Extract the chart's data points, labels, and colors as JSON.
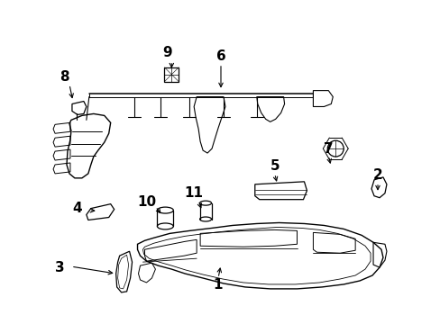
{
  "bg_color": "#ffffff",
  "line_color": "#000000",
  "label_color": "#000000",
  "figsize": [
    4.89,
    3.6
  ],
  "dpi": 100,
  "label_info": {
    "1": {
      "lpos": [
        242,
        318
      ],
      "astart": [
        242,
        310
      ],
      "aend": [
        245,
        295
      ]
    },
    "2": {
      "lpos": [
        420,
        195
      ],
      "astart": [
        420,
        203
      ],
      "aend": [
        420,
        215
      ]
    },
    "3": {
      "lpos": [
        65,
        298
      ],
      "astart": [
        78,
        297
      ],
      "aend": [
        128,
        305
      ]
    },
    "4": {
      "lpos": [
        85,
        232
      ],
      "astart": [
        98,
        234
      ],
      "aend": [
        108,
        235
      ]
    },
    "5": {
      "lpos": [
        305,
        185
      ],
      "astart": [
        305,
        193
      ],
      "aend": [
        308,
        205
      ]
    },
    "6": {
      "lpos": [
        245,
        62
      ],
      "astart": [
        245,
        70
      ],
      "aend": [
        245,
        100
      ]
    },
    "7": {
      "lpos": [
        365,
        165
      ],
      "astart": [
        365,
        173
      ],
      "aend": [
        368,
        185
      ]
    },
    "8": {
      "lpos": [
        70,
        85
      ],
      "astart": [
        76,
        93
      ],
      "aend": [
        80,
        112
      ]
    },
    "9": {
      "lpos": [
        185,
        58
      ],
      "astart": [
        190,
        67
      ],
      "aend": [
        190,
        78
      ]
    },
    "10": {
      "lpos": [
        162,
        225
      ],
      "astart": [
        172,
        230
      ],
      "aend": [
        180,
        240
      ]
    },
    "11": {
      "lpos": [
        215,
        215
      ],
      "astart": [
        220,
        223
      ],
      "aend": [
        224,
        235
      ]
    }
  }
}
